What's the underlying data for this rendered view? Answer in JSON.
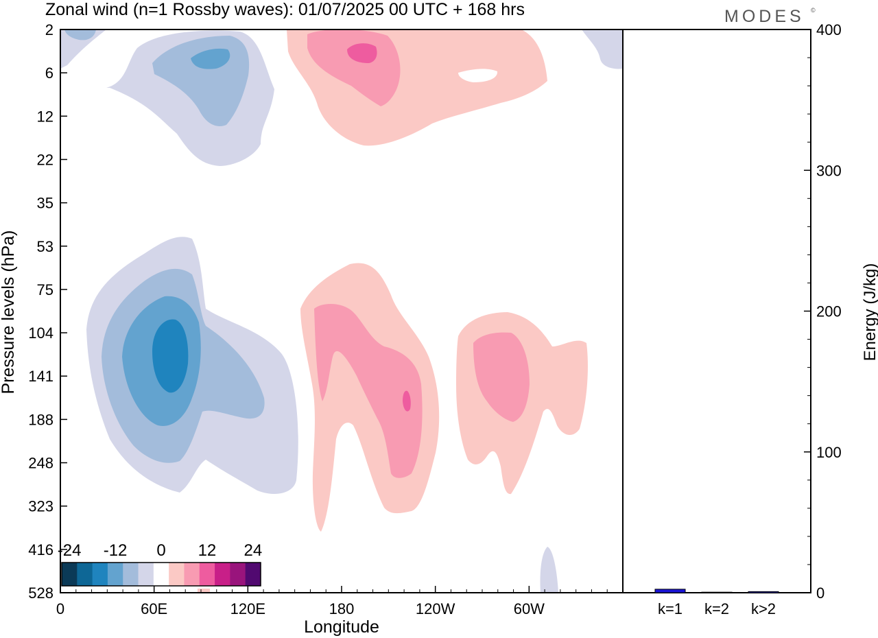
{
  "header": {
    "title": "Zonal wind (n=1 Rossby waves):  01/07/2025  00 UTC  + 168 hrs",
    "brand": "MODES"
  },
  "chart_data": [
    {
      "type": "heatmap",
      "xlabel": "Longitude",
      "ylabel": "Pressure levels (hPa)",
      "x_ticks": [
        "0",
        "60E",
        "120E",
        "180",
        "120W",
        "60W"
      ],
      "x_tick_deg": [
        0,
        60,
        120,
        180,
        240,
        300
      ],
      "xlim": [
        0,
        360
      ],
      "y_ticks": [
        "2",
        "6",
        "12",
        "22",
        "35",
        "53",
        "75",
        "104",
        "141",
        "188",
        "248",
        "323",
        "416",
        "528"
      ],
      "colorbar": {
        "labels": [
          "-24",
          "-12",
          "0",
          "12",
          "24"
        ],
        "label_values": [
          -24,
          -12,
          0,
          12,
          24
        ],
        "colors": [
          "#0b3a57",
          "#0e6796",
          "#1f84be",
          "#63a3cf",
          "#a3bcdb",
          "#d4d6e9",
          "#ffffff",
          "#fbc9c5",
          "#f89bb2",
          "#ee5c9f",
          "#c81f88",
          "#99147c",
          "#510970"
        ]
      },
      "features": [
        {
          "sign": "negative",
          "levels": 4,
          "lon_center_deg": 68,
          "pressure_center_hPa": 120,
          "peak": -20
        },
        {
          "sign": "negative",
          "levels": 3,
          "lon_center_deg": 100,
          "pressure_center_hPa": 4,
          "peak": -14
        },
        {
          "sign": "positive",
          "levels": 3,
          "lon_center_deg": 187,
          "pressure_center_hPa": 4,
          "peak": 14
        },
        {
          "sign": "positive",
          "levels": 3,
          "lon_center_deg": 220,
          "pressure_center_hPa": 150,
          "peak": 14
        },
        {
          "sign": "positive",
          "levels": 2,
          "lon_center_deg": 290,
          "pressure_center_hPa": 130,
          "peak": 10
        }
      ]
    },
    {
      "type": "bar",
      "ylabel": "Energy (J/kg)",
      "categories": [
        "k=1",
        "k=2",
        "k>2"
      ],
      "values": [
        2.5,
        0.4,
        0.8
      ],
      "ylim": [
        0,
        400
      ],
      "y_ticks": [
        "0",
        "100",
        "200",
        "300",
        "400"
      ],
      "y_tick_values": [
        0,
        100,
        200,
        300,
        400
      ],
      "bar_color": "#1a14d6"
    }
  ]
}
